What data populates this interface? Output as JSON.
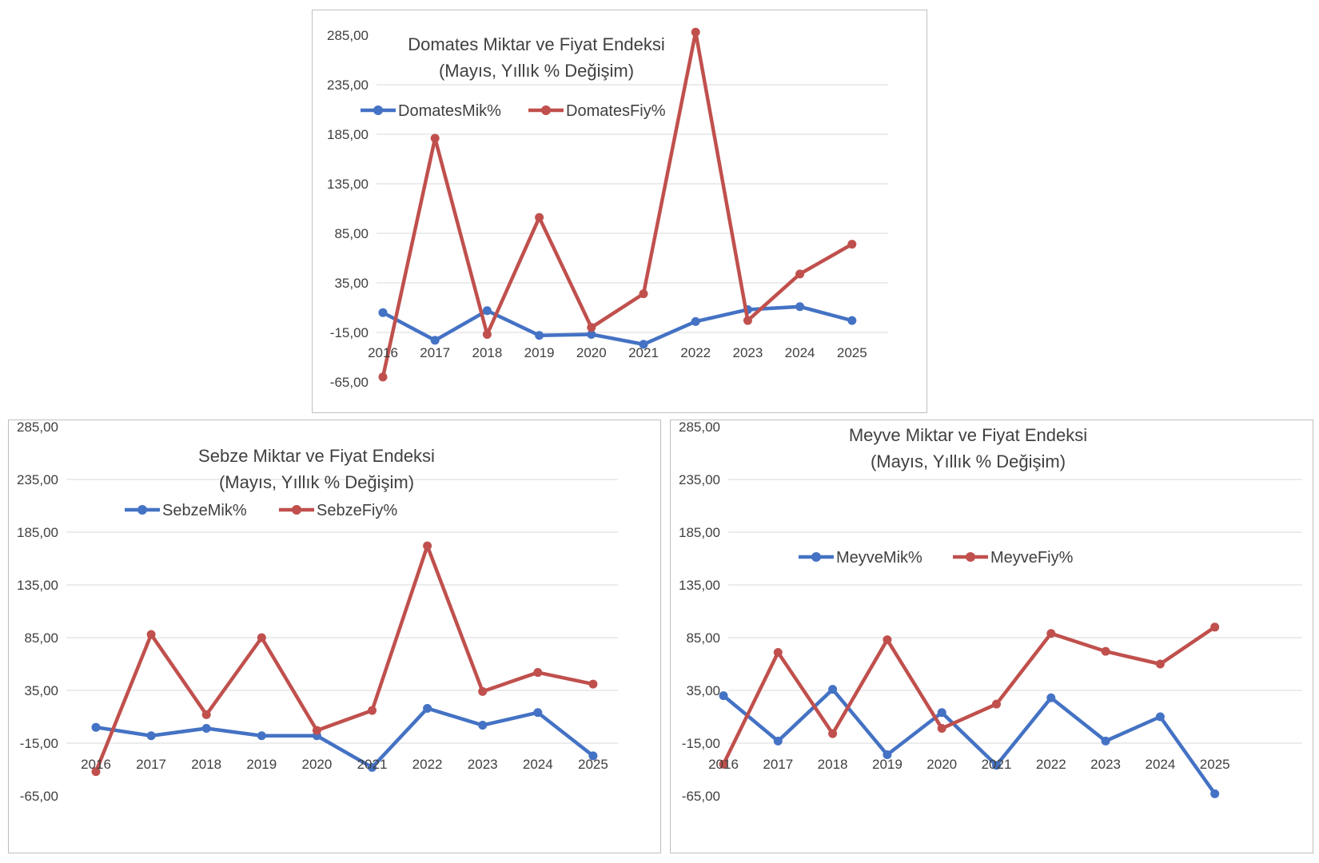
{
  "colors": {
    "quantity": "#4472c4",
    "price": "#c0504d",
    "grid": "#d9d9d9",
    "text": "#404040"
  },
  "chart_data": [
    {
      "id": "domates",
      "type": "line",
      "title": "Domates Miktar ve Fiyat Endeksi",
      "subtitle": "(Mayıs, Yıllık % Değişim)",
      "x": [
        "2016",
        "2017",
        "2018",
        "2019",
        "2020",
        "2021",
        "2022",
        "2023",
        "2024",
        "2025"
      ],
      "y_ticks": [
        "285,00",
        "235,00",
        "185,00",
        "135,00",
        "85,00",
        "35,00",
        "-15,00",
        "-65,00"
      ],
      "ylim": [
        -65,
        285
      ],
      "grid": true,
      "legend_position": "top-left",
      "series": [
        {
          "name": "DomatesMik%",
          "color": "#4472c4",
          "values": [
            5,
            -23,
            7,
            -18,
            -17,
            -27,
            -4,
            8,
            11,
            -3
          ]
        },
        {
          "name": "DomatesFiy%",
          "color": "#c0504d",
          "values": [
            -60,
            181,
            -17,
            101,
            -10,
            24,
            288,
            -3,
            44,
            74
          ]
        }
      ]
    },
    {
      "id": "sebze",
      "type": "line",
      "title": "Sebze Miktar ve Fiyat Endeksi",
      "subtitle": "(Mayıs, Yıllık % Değişim)",
      "x": [
        "2016",
        "2017",
        "2018",
        "2019",
        "2020",
        "2021",
        "2022",
        "2023",
        "2024",
        "2025"
      ],
      "y_ticks": [
        "285,00",
        "235,00",
        "185,00",
        "135,00",
        "85,00",
        "35,00",
        "-15,00",
        "-65,00"
      ],
      "ylim": [
        -65,
        285
      ],
      "grid": true,
      "legend_position": "top-left",
      "series": [
        {
          "name": "SebzeMik%",
          "color": "#4472c4",
          "values": [
            0,
            -8,
            -1,
            -8,
            -8,
            -38,
            18,
            2,
            14,
            -27
          ]
        },
        {
          "name": "SebzeFiy%",
          "color": "#c0504d",
          "values": [
            -42,
            88,
            12,
            85,
            -3,
            16,
            172,
            34,
            52,
            41
          ]
        }
      ]
    },
    {
      "id": "meyve",
      "type": "line",
      "title": "Meyve Miktar ve Fiyat Endeksi",
      "subtitle": "(Mayıs, Yıllık % Değişim)",
      "x": [
        "2016",
        "2017",
        "2018",
        "2019",
        "2020",
        "2021",
        "2022",
        "2023",
        "2024",
        "2025"
      ],
      "y_ticks": [
        "285,00",
        "235,00",
        "185,00",
        "135,00",
        "85,00",
        "35,00",
        "-15,00",
        "-65,00"
      ],
      "ylim": [
        -65,
        285
      ],
      "grid": true,
      "legend_position": "top-center",
      "series": [
        {
          "name": "MeyveMik%",
          "color": "#4472c4",
          "values": [
            30,
            -13,
            36,
            -26,
            14,
            -36,
            28,
            -13,
            10,
            -63
          ]
        },
        {
          "name": "MeyveFiy%",
          "color": "#c0504d",
          "values": [
            -35,
            71,
            -6,
            83,
            -1,
            22,
            89,
            72,
            60,
            95
          ]
        }
      ]
    }
  ]
}
